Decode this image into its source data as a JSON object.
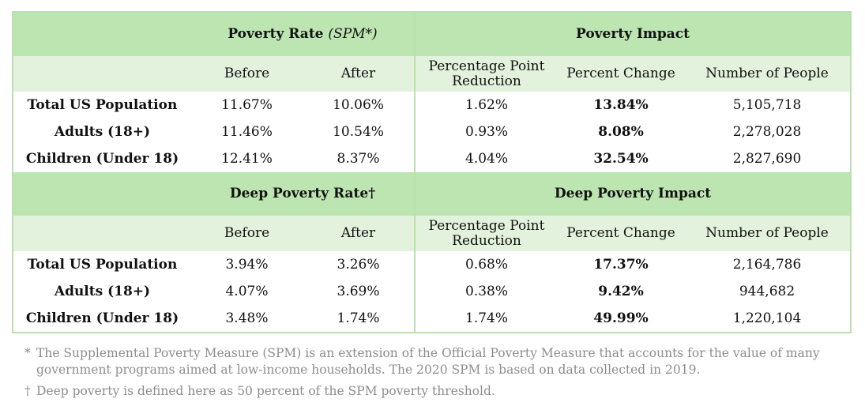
{
  "sections": [
    {
      "rate_title": "Poverty Rate",
      "rate_title_note": "(SPM*)",
      "impact_title": "Poverty Impact",
      "columns": [
        "Before",
        "After",
        "Percentage Point Reduction",
        "Percent Change",
        "Number of People"
      ],
      "rows": [
        {
          "label": "Total US Population",
          "before": "11.67%",
          "after": "10.06%",
          "pp_reduction": "1.62%",
          "pct_change": "13.84%",
          "people": "5,105,718"
        },
        {
          "label": "Adults (18+)",
          "before": "11.46%",
          "after": "10.54%",
          "pp_reduction": "0.93%",
          "pct_change": "8.08%",
          "people": "2,278,028"
        },
        {
          "label": "Children (Under 18)",
          "before": "12.41%",
          "after": "8.37%",
          "pp_reduction": "4.04%",
          "pct_change": "32.54%",
          "people": "2,827,690"
        }
      ]
    },
    {
      "rate_title": "Deep Poverty Rate†",
      "rate_title_note": "",
      "impact_title": "Deep Poverty Impact",
      "columns": [
        "Before",
        "After",
        "Percentage Point Reduction",
        "Percent Change",
        "Number of People"
      ],
      "rows": [
        {
          "label": "Total US Population",
          "before": "3.94%",
          "after": "3.26%",
          "pp_reduction": "0.68%",
          "pct_change": "17.37%",
          "people": "2,164,786"
        },
        {
          "label": "Adults (18+)",
          "before": "4.07%",
          "after": "3.69%",
          "pp_reduction": "0.38%",
          "pct_change": "9.42%",
          "people": "944,682"
        },
        {
          "label": "Children (Under 18)",
          "before": "3.48%",
          "after": "1.74%",
          "pp_reduction": "1.74%",
          "pct_change": "49.99%",
          "people": "1,220,104"
        }
      ]
    }
  ],
  "footnotes": [
    {
      "marker": "*",
      "text": "The Supplemental Poverty Measure (SPM) is an extension of the Official Poverty Measure that accounts for the value of many government programs aimed at low-income households. The 2020 SPM is based on data collected in 2019."
    },
    {
      "marker": "†",
      "text": "Deep poverty is defined here as 50 percent of the SPM poverty threshold."
    }
  ],
  "colors": {
    "header_bg": "#bde5b1",
    "subheader_bg": "#e2f2dc",
    "border": "#b9e0ae",
    "footnote_text": "#8d8d8d"
  }
}
